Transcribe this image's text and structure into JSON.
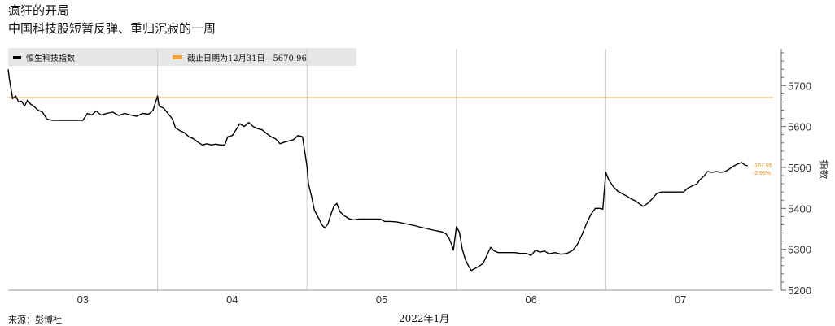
{
  "title": "疯狂的开局",
  "subtitle": "中国科技股短暂反弹、重归沉寂的一周",
  "source": "来源：彭博社",
  "x_caption": "2022年1月",
  "legend": {
    "series_label": "恒生科技指数",
    "reference_label": "截止日期为12月31日—5670.96"
  },
  "annotation": {
    "change_points": "-167.95",
    "change_pct": "-2.96%"
  },
  "colors": {
    "line": "#000000",
    "reference": "#f2a33a",
    "grid": "#cccccc",
    "legend_bg": "#e6e6e6"
  },
  "chart_data": {
    "type": "line",
    "title": "疯狂的开局",
    "subtitle": "中国科技股短暂反弹、重归沉寂的一周",
    "ylabel": "指数",
    "xlabel": "2022年1月",
    "ylim": [
      5200,
      5790
    ],
    "y_ticks": [
      5200,
      5300,
      5400,
      5500,
      5600,
      5700
    ],
    "x_ticks": [
      "03",
      "04",
      "05",
      "06",
      "07"
    ],
    "days": [
      3,
      4,
      5,
      6,
      7
    ],
    "reference": {
      "label": "截止日期为12月31日—5670.96",
      "value": 5670.96
    },
    "series": [
      {
        "name": "恒生科技指数",
        "points": [
          [
            3.0,
            5740
          ],
          [
            3.01,
            5712
          ],
          [
            3.02,
            5690
          ],
          [
            3.03,
            5668
          ],
          [
            3.05,
            5675
          ],
          [
            3.07,
            5660
          ],
          [
            3.09,
            5662
          ],
          [
            3.11,
            5650
          ],
          [
            3.13,
            5665
          ],
          [
            3.15,
            5655
          ],
          [
            3.17,
            5650
          ],
          [
            3.2,
            5640
          ],
          [
            3.23,
            5635
          ],
          [
            3.26,
            5618
          ],
          [
            3.3,
            5615
          ],
          [
            3.35,
            5615
          ],
          [
            3.4,
            5615
          ],
          [
            3.45,
            5615
          ],
          [
            3.5,
            5615
          ],
          [
            3.53,
            5632
          ],
          [
            3.56,
            5628
          ],
          [
            3.59,
            5638
          ],
          [
            3.62,
            5628
          ],
          [
            3.66,
            5632
          ],
          [
            3.7,
            5635
          ],
          [
            3.74,
            5627
          ],
          [
            3.78,
            5632
          ],
          [
            3.82,
            5628
          ],
          [
            3.86,
            5625
          ],
          [
            3.9,
            5632
          ],
          [
            3.94,
            5630
          ],
          [
            3.97,
            5640
          ],
          [
            4.0,
            5675
          ],
          [
            4.01,
            5650
          ],
          [
            4.04,
            5645
          ],
          [
            4.07,
            5632
          ],
          [
            4.1,
            5618
          ],
          [
            4.12,
            5597
          ],
          [
            4.15,
            5590
          ],
          [
            4.18,
            5585
          ],
          [
            4.21,
            5575
          ],
          [
            4.24,
            5570
          ],
          [
            4.27,
            5562
          ],
          [
            4.3,
            5555
          ],
          [
            4.33,
            5558
          ],
          [
            4.36,
            5555
          ],
          [
            4.39,
            5557
          ],
          [
            4.42,
            5555
          ],
          [
            4.45,
            5555
          ],
          [
            4.47,
            5575
          ],
          [
            4.5,
            5578
          ],
          [
            4.53,
            5595
          ],
          [
            4.55,
            5607
          ],
          [
            4.58,
            5600
          ],
          [
            4.61,
            5610
          ],
          [
            4.64,
            5600
          ],
          [
            4.67,
            5595
          ],
          [
            4.7,
            5592
          ],
          [
            4.73,
            5583
          ],
          [
            4.76,
            5575
          ],
          [
            4.79,
            5570
          ],
          [
            4.82,
            5558
          ],
          [
            4.85,
            5562
          ],
          [
            4.88,
            5565
          ],
          [
            4.91,
            5568
          ],
          [
            4.94,
            5578
          ],
          [
            4.97,
            5575
          ],
          [
            5.0,
            5503
          ],
          [
            5.01,
            5460
          ],
          [
            5.03,
            5430
          ],
          [
            5.05,
            5395
          ],
          [
            5.08,
            5375
          ],
          [
            5.1,
            5360
          ],
          [
            5.12,
            5352
          ],
          [
            5.14,
            5362
          ],
          [
            5.16,
            5385
          ],
          [
            5.18,
            5405
          ],
          [
            5.2,
            5412
          ],
          [
            5.22,
            5392
          ],
          [
            5.25,
            5382
          ],
          [
            5.28,
            5375
          ],
          [
            5.31,
            5372
          ],
          [
            5.35,
            5374
          ],
          [
            5.38,
            5374
          ],
          [
            5.42,
            5374
          ],
          [
            5.46,
            5374
          ],
          [
            5.49,
            5374
          ],
          [
            5.52,
            5368
          ],
          [
            5.56,
            5368
          ],
          [
            5.6,
            5367
          ],
          [
            5.64,
            5364
          ],
          [
            5.68,
            5361
          ],
          [
            5.72,
            5358
          ],
          [
            5.76,
            5354
          ],
          [
            5.8,
            5351
          ],
          [
            5.83,
            5348
          ],
          [
            5.87,
            5345
          ],
          [
            5.9,
            5343
          ],
          [
            5.93,
            5338
          ],
          [
            5.95,
            5328
          ],
          [
            5.97,
            5310
          ],
          [
            5.98,
            5298
          ],
          [
            6.0,
            5355
          ],
          [
            6.02,
            5342
          ],
          [
            6.04,
            5300
          ],
          [
            6.06,
            5275
          ],
          [
            6.08,
            5260
          ],
          [
            6.1,
            5248
          ],
          [
            6.12,
            5252
          ],
          [
            6.15,
            5258
          ],
          [
            6.18,
            5266
          ],
          [
            6.21,
            5290
          ],
          [
            6.23,
            5305
          ],
          [
            6.25,
            5297
          ],
          [
            6.28,
            5292
          ],
          [
            6.31,
            5292
          ],
          [
            6.35,
            5292
          ],
          [
            6.39,
            5292
          ],
          [
            6.43,
            5290
          ],
          [
            6.47,
            5290
          ],
          [
            6.5,
            5285
          ],
          [
            6.53,
            5298
          ],
          [
            6.56,
            5293
          ],
          [
            6.59,
            5296
          ],
          [
            6.62,
            5289
          ],
          [
            6.66,
            5292
          ],
          [
            6.7,
            5288
          ],
          [
            6.74,
            5290
          ],
          [
            6.78,
            5298
          ],
          [
            6.81,
            5312
          ],
          [
            6.84,
            5335
          ],
          [
            6.87,
            5362
          ],
          [
            6.9,
            5385
          ],
          [
            6.93,
            5400
          ],
          [
            6.96,
            5400
          ],
          [
            6.98,
            5398
          ],
          [
            7.0,
            5488
          ],
          [
            7.02,
            5470
          ],
          [
            7.05,
            5453
          ],
          [
            7.08,
            5442
          ],
          [
            7.11,
            5436
          ],
          [
            7.14,
            5430
          ],
          [
            7.17,
            5423
          ],
          [
            7.2,
            5418
          ],
          [
            7.23,
            5410
          ],
          [
            7.25,
            5405
          ],
          [
            7.28,
            5412
          ],
          [
            7.31,
            5423
          ],
          [
            7.34,
            5436
          ],
          [
            7.37,
            5440
          ],
          [
            7.42,
            5440
          ],
          [
            7.47,
            5440
          ],
          [
            7.52,
            5440
          ],
          [
            7.55,
            5450
          ],
          [
            7.58,
            5455
          ],
          [
            7.61,
            5460
          ],
          [
            7.63,
            5470
          ],
          [
            7.66,
            5480
          ],
          [
            7.68,
            5490
          ],
          [
            7.71,
            5488
          ],
          [
            7.74,
            5490
          ],
          [
            7.77,
            5488
          ],
          [
            7.8,
            5490
          ],
          [
            7.83,
            5497
          ],
          [
            7.85,
            5502
          ],
          [
            7.88,
            5508
          ],
          [
            7.91,
            5512
          ],
          [
            7.93,
            5506
          ],
          [
            7.95,
            5504
          ]
        ]
      }
    ],
    "grid": "vertical",
    "legend_position": "top-left"
  }
}
